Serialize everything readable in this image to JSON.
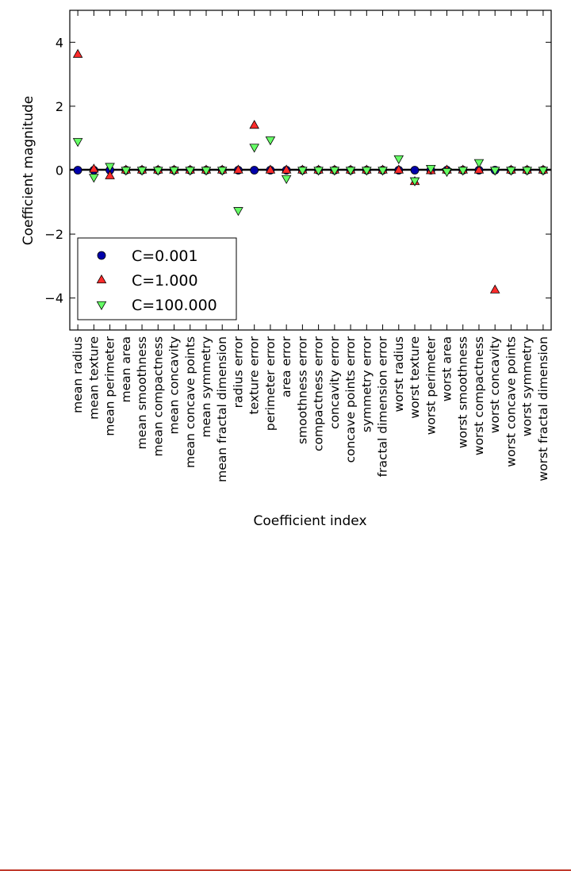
{
  "chart_data": {
    "type": "scatter",
    "title": "",
    "xlabel": "Coefficient index",
    "ylabel": "Coefficient magnitude",
    "ylim": [
      -5,
      5
    ],
    "yticks": [
      4,
      2,
      0,
      -2,
      -4
    ],
    "ytick_labels": [
      "4",
      "2",
      "0",
      "−2",
      "−4"
    ],
    "grid": false,
    "legend_position": "lower-left",
    "categories": [
      "mean radius",
      "mean texture",
      "mean perimeter",
      "mean area",
      "mean smoothness",
      "mean compactness",
      "mean concavity",
      "mean concave points",
      "mean symmetry",
      "mean fractal dimension",
      "radius error",
      "texture error",
      "perimeter error",
      "area error",
      "smoothness error",
      "compactness error",
      "concavity error",
      "concave points error",
      "symmetry error",
      "fractal dimension error",
      "worst radius",
      "worst texture",
      "worst perimeter",
      "worst area",
      "worst smoothness",
      "worst compactness",
      "worst concavity",
      "worst concave points",
      "worst symmetry",
      "worst fractal dimension"
    ],
    "series": [
      {
        "name": "C=0.001",
        "marker": "circle",
        "color": "#0000aa",
        "values": [
          0.0,
          0.0,
          0.0,
          0.0,
          0.0,
          0.0,
          0.0,
          0.0,
          0.0,
          0.0,
          0.0,
          0.0,
          0.0,
          0.0,
          0.0,
          0.0,
          0.0,
          0.0,
          0.0,
          0.0,
          0.0,
          0.0,
          0.0,
          0.0,
          0.0,
          0.0,
          0.0,
          0.0,
          0.0,
          0.0
        ]
      },
      {
        "name": "C=1.000",
        "marker": "triangle-up",
        "color": "#ff2b2b",
        "values": [
          3.62,
          0.03,
          -0.18,
          0.0,
          0.0,
          0.0,
          0.0,
          0.0,
          0.0,
          0.0,
          0.0,
          1.4,
          0.0,
          0.0,
          0.0,
          0.0,
          0.0,
          0.0,
          0.0,
          0.0,
          0.0,
          -0.36,
          -0.02,
          0.0,
          0.0,
          0.0,
          -3.75,
          0.0,
          0.0,
          0.0
        ]
      },
      {
        "name": "C=100.000",
        "marker": "triangle-down",
        "color": "#66ff66",
        "values": [
          0.9,
          -0.22,
          0.12,
          0.0,
          0.0,
          0.0,
          0.0,
          0.0,
          0.0,
          0.0,
          -1.26,
          0.72,
          0.95,
          -0.26,
          0.0,
          0.0,
          0.0,
          0.0,
          0.0,
          0.0,
          0.36,
          -0.33,
          0.06,
          -0.04,
          0.0,
          0.24,
          0.0,
          0.0,
          0.0,
          0.0
        ]
      }
    ]
  }
}
